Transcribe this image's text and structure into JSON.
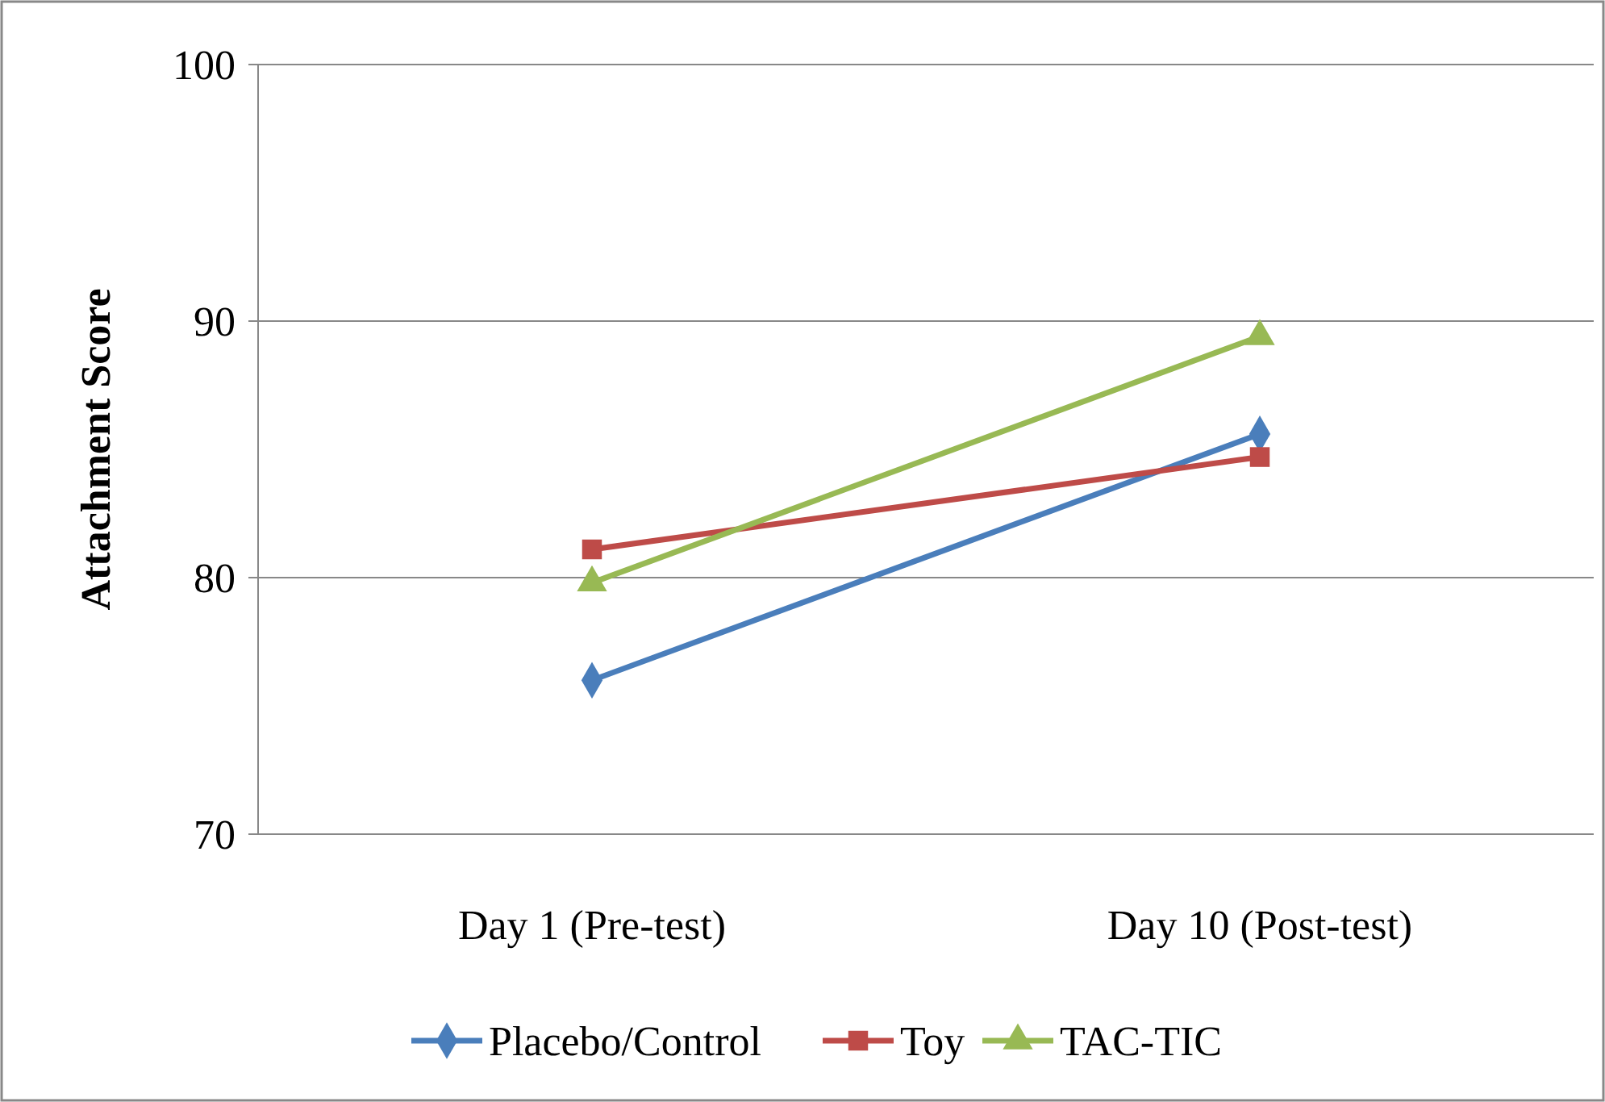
{
  "chart_data": {
    "type": "line",
    "ylabel": "Attachment Score",
    "categories": [
      "Day 1 (Pre-test)",
      "Day 10 (Post-test)"
    ],
    "series": [
      {
        "name": "Placebo/Control",
        "color": "#4a7ebb",
        "values": [
          76.0,
          85.6
        ],
        "marker": "diamond"
      },
      {
        "name": "Toy",
        "color": "#be4b48",
        "values": [
          81.1,
          84.7
        ],
        "marker": "square"
      },
      {
        "name": "TAC-TIC",
        "color": "#98b954",
        "values": [
          79.8,
          89.4
        ],
        "marker": "triangle"
      }
    ],
    "ylim": [
      70,
      100
    ],
    "yticks": [
      70,
      80,
      90,
      100
    ],
    "grid": "y",
    "legend": "bottom",
    "line_style": "solid"
  }
}
